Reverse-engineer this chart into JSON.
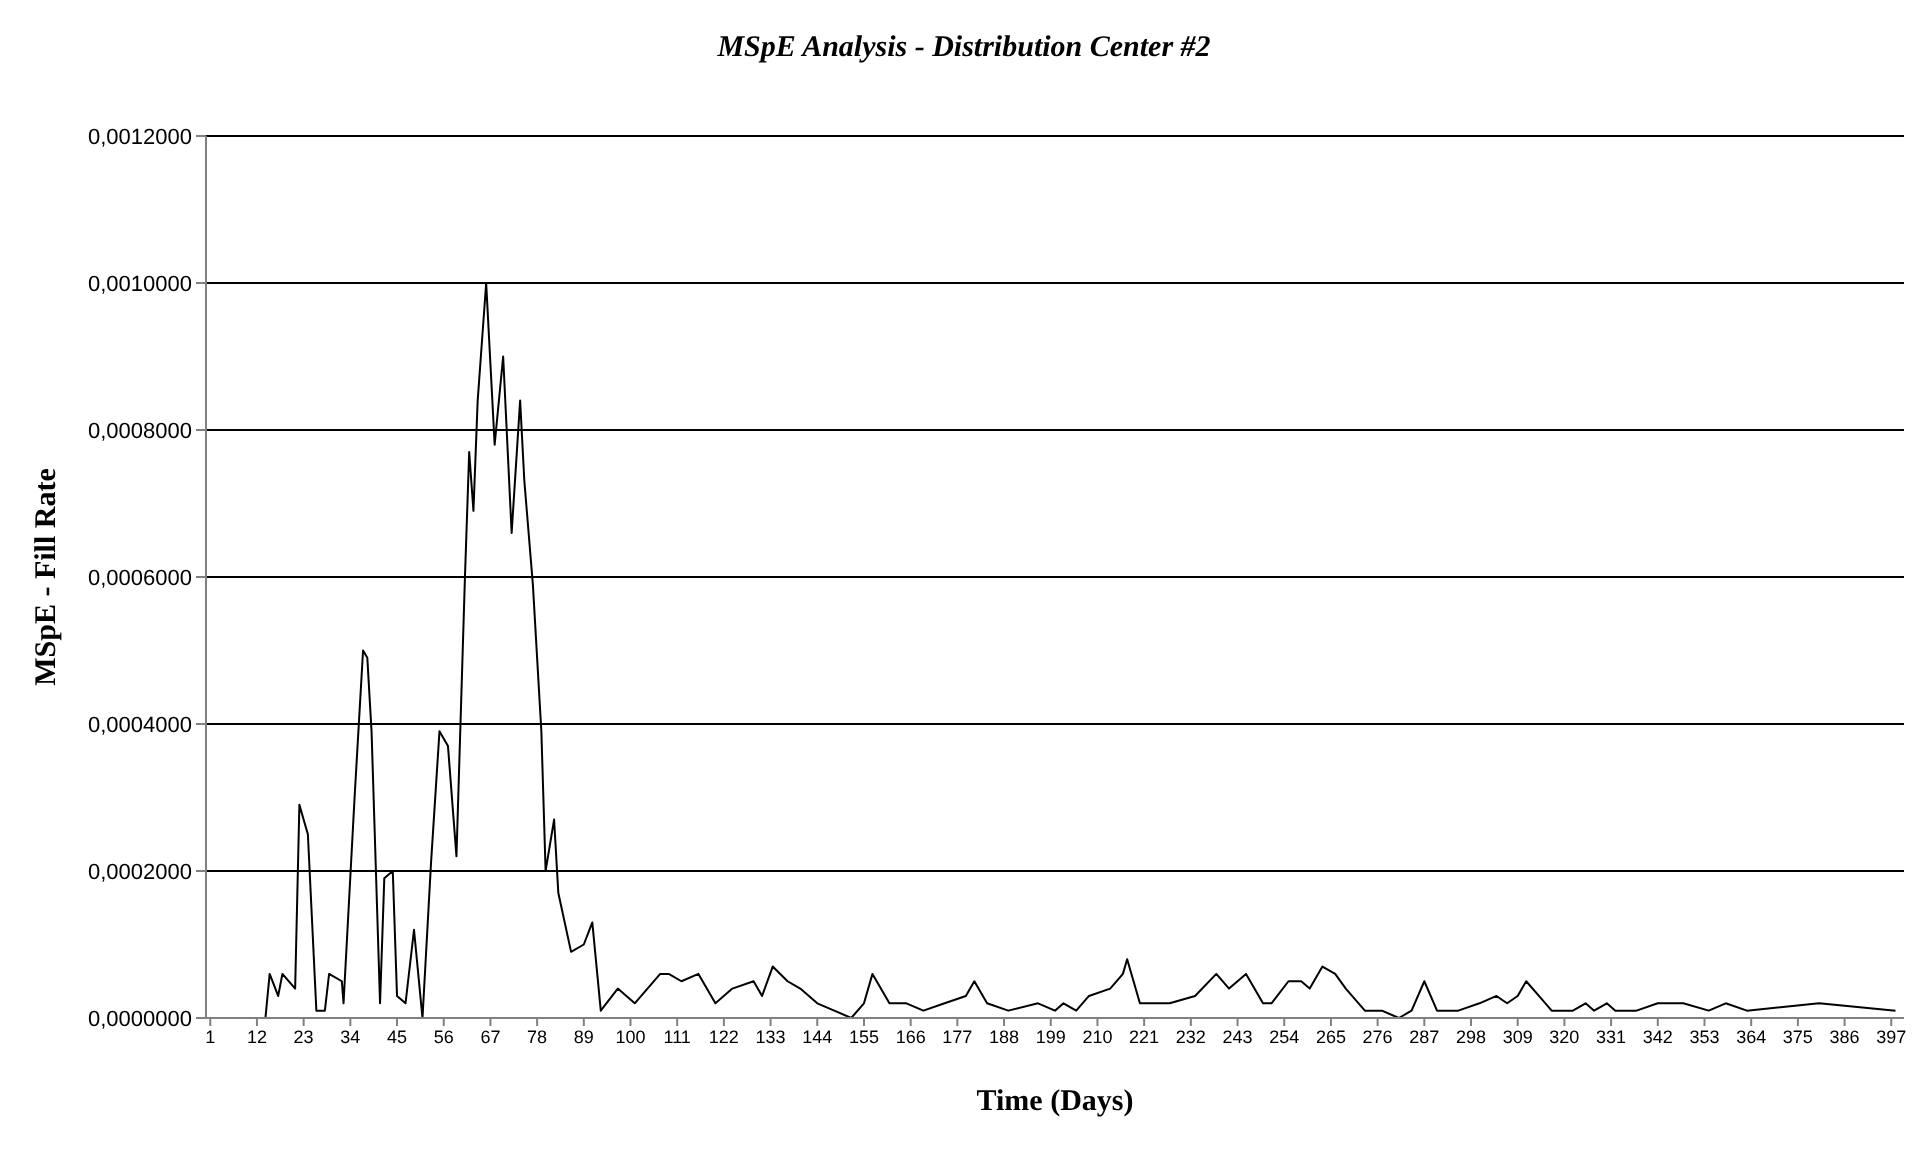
{
  "chart_data": {
    "type": "line",
    "title": "MSpE Analysis - Distribution Center #2",
    "xlabel": "Time (Days)",
    "ylabel": "MSpE - Fill Rate",
    "xlim": [
      0,
      400
    ],
    "xticks": [
      1,
      12,
      23,
      34,
      45,
      56,
      67,
      78,
      89,
      100,
      111,
      122,
      133,
      144,
      155,
      166,
      177,
      188,
      199,
      210,
      221,
      232,
      243,
      254,
      265,
      276,
      287,
      298,
      309,
      320,
      331,
      342,
      353,
      364,
      375,
      386,
      397
    ],
    "ylim": [
      0,
      0.0012
    ],
    "yticks": [
      {
        "value": 0,
        "label": "0,0000000"
      },
      {
        "value": 0.0002,
        "label": "0,0002000"
      },
      {
        "value": 0.0004,
        "label": "0,0004000"
      },
      {
        "value": 0.0006,
        "label": "0,0006000"
      },
      {
        "value": 0.0008,
        "label": "0,0008000"
      },
      {
        "value": 0.001,
        "label": "0,0010000"
      },
      {
        "value": 0.0012,
        "label": "0,0012000"
      }
    ],
    "grid": "y",
    "legend": false,
    "marker": "none",
    "line_style": "solid",
    "series": [
      {
        "color": "#000000",
        "x": [
          1,
          14,
          15,
          17,
          18,
          21,
          22,
          24,
          26,
          28,
          29,
          32,
          32.4,
          35,
          37,
          38,
          39,
          41,
          42,
          44,
          45,
          47,
          49,
          51,
          53,
          55,
          57,
          59,
          61,
          62,
          63,
          64,
          66,
          67,
          68,
          70,
          72,
          74,
          75,
          77,
          79,
          80,
          82,
          83,
          86,
          89,
          91,
          93,
          97,
          101,
          107,
          109,
          112,
          116,
          120,
          124,
          129,
          131,
          133.5,
          137,
          140,
          144,
          148,
          152,
          155,
          157,
          161,
          165,
          169,
          174,
          179,
          181,
          184,
          189,
          196,
          200,
          202,
          205,
          208,
          213,
          216,
          217,
          220,
          227,
          233,
          238,
          241,
          245,
          249,
          251,
          255,
          258,
          260,
          263,
          266,
          268.5,
          273,
          277,
          281,
          284,
          287,
          290,
          295,
          300,
          304,
          306.5,
          309,
          311,
          314,
          317,
          322,
          325,
          327,
          330,
          332,
          334,
          337,
          342,
          348,
          354,
          358,
          363,
          380,
          398
        ],
        "values": [
          0,
          0,
          6e-05,
          3e-05,
          6e-05,
          4e-05,
          0.00029,
          0.00025,
          1e-05,
          1e-05,
          6e-05,
          5e-05,
          2e-05,
          0.0003,
          0.0005,
          0.00049,
          0.00039,
          2e-05,
          0.00019,
          0.0002,
          3e-05,
          2e-05,
          0.00012,
          0,
          0.00021,
          0.00039,
          0.00037,
          0.00022,
          0.0006,
          0.00077,
          0.00069,
          0.00084,
          0.001,
          0.00089,
          0.00078,
          0.0009,
          0.00066,
          0.00084,
          0.00073,
          0.00059,
          0.00039,
          0.0002,
          0.00027,
          0.00017,
          9e-05,
          0.0001,
          0.00013,
          1e-05,
          4e-05,
          2e-05,
          6e-05,
          6e-05,
          5e-05,
          6e-05,
          2e-05,
          4e-05,
          5e-05,
          3e-05,
          7e-05,
          5e-05,
          4e-05,
          2e-05,
          1e-05,
          0,
          2e-05,
          6e-05,
          2e-05,
          2e-05,
          1e-05,
          2e-05,
          3e-05,
          5e-05,
          2e-05,
          1e-05,
          2e-05,
          1e-05,
          2e-05,
          1e-05,
          3e-05,
          4e-05,
          6e-05,
          8e-05,
          2e-05,
          2e-05,
          3e-05,
          6e-05,
          4e-05,
          6e-05,
          2e-05,
          2e-05,
          5e-05,
          5e-05,
          4e-05,
          7e-05,
          6e-05,
          4e-05,
          1e-05,
          1e-05,
          0,
          1e-05,
          5e-05,
          1e-05,
          1e-05,
          2e-05,
          3e-05,
          2e-05,
          3e-05,
          5e-05,
          3e-05,
          1e-05,
          1e-05,
          2e-05,
          1e-05,
          2e-05,
          1e-05,
          1e-05,
          1e-05,
          2e-05,
          2e-05,
          1e-05,
          2e-05,
          1e-05,
          2e-05,
          1e-05
        ]
      }
    ]
  }
}
